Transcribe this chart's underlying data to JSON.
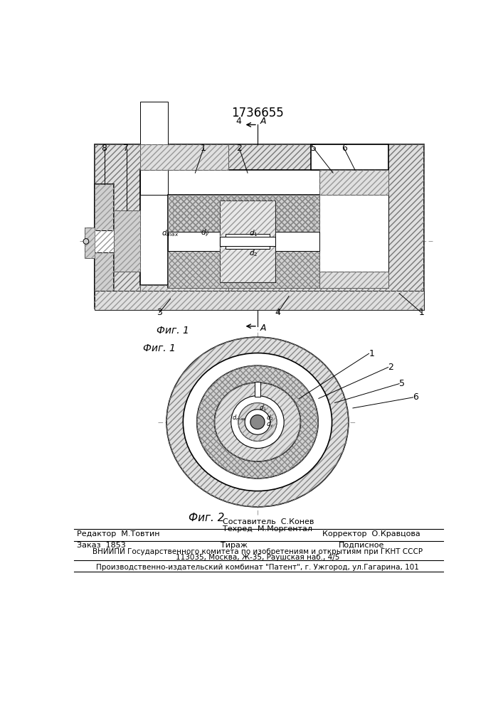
{
  "patent_number": "1736655",
  "bg_color": "#ffffff",
  "fig_width": 7.07,
  "fig_height": 10.0,
  "bottom_texts": {
    "editor": "Редактор  М.Товтин",
    "composer": "Составитель  С.Конев",
    "techred": "Техред  М.Моргентал",
    "corrector": "Корректор  О.Кравцова",
    "order": "Заказ  1853",
    "tirage": "Тираж",
    "podpisnoe": "Подписное",
    "vniip1": "ВНИИПИ Государственного комитета по изобретениям и открытиям при ГКНТ СССР",
    "vniip2": "113035, Москва, Ж-35, Раушская наб., 4/5",
    "publisher": "Производственно-издательский комбинат \"Патент\", г. Ужгород, ул.Гагарина, 101"
  }
}
